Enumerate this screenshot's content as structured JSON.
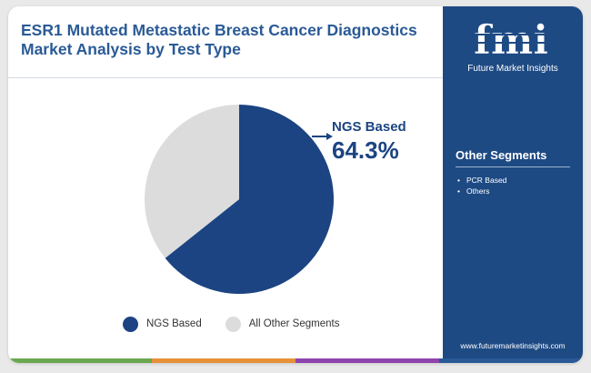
{
  "header": {
    "title": "ESR1 Mutated Metastatic Breast Cancer Diagnostics Market Analysis by Test Type"
  },
  "chart_data": {
    "type": "pie",
    "slices": [
      {
        "label": "NGS Based",
        "value": 64.3,
        "color": "#1c4482"
      },
      {
        "label": "All Other Segments",
        "value": 35.7,
        "color": "#dcdcdc"
      }
    ],
    "callout": {
      "label": "NGS Based",
      "value_text": "64.3%"
    },
    "legend": [
      "NGS Based",
      "All Other Segments"
    ],
    "legend_placement": "bottom"
  },
  "sidebar": {
    "logo_text": "fmi",
    "logo_caption": "Future Market Insights",
    "segments_title": "Other Segments",
    "segments": [
      "PCR Based",
      "Others"
    ],
    "website": "www.futuremarketinsights.com"
  },
  "colors": {
    "title": "#2a5a96",
    "sidebar": "#1e4a84",
    "accent_bar": [
      "#6aa84f",
      "#e69138",
      "#8e44ad",
      "#2a5a96"
    ]
  }
}
